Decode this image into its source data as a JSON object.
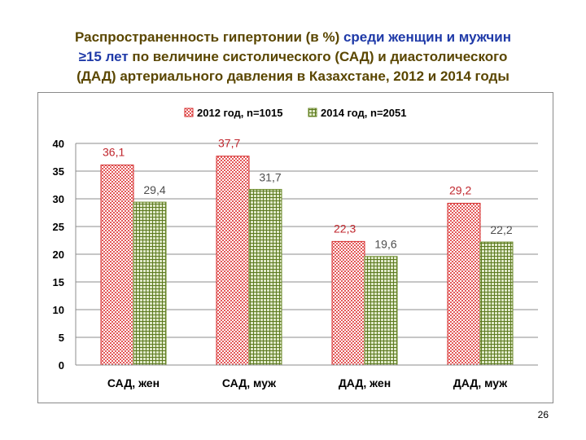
{
  "title": {
    "part1": "Распространенность гипертонии (в %) ",
    "part2": "среди женщин и мужчин",
    "line2": "≥15 лет",
    "line2_rest": " по величине систолического (САД) и диастолического",
    "line3": "(ДАД) артериального давления в Казахстане, 2012 и 2014 годы"
  },
  "page_number": "26",
  "colors": {
    "series_2012": "#d42a2a",
    "series_2014": "#6b8a2a",
    "label_2012": "#c0262d",
    "label_2014": "#4d4d4d",
    "title_main": "#5a4600",
    "title_accent": "#1f3aa8"
  },
  "chart_data": {
    "type": "bar",
    "categories": [
      "САД, жен",
      "САД, муж",
      "ДАД, жен",
      "ДАД, муж"
    ],
    "series": [
      {
        "name": "2012 год, n=1015",
        "values": [
          36.1,
          37.7,
          22.3,
          29.2
        ],
        "labels": [
          "36,1",
          "37,7",
          "22,3",
          "29,2"
        ]
      },
      {
        "name": "2014 год, n=2051",
        "values": [
          29.4,
          31.7,
          19.6,
          22.2
        ],
        "labels": [
          "29,4",
          "31,7",
          "19,6",
          "22,2"
        ]
      }
    ],
    "ylim": [
      0,
      40
    ],
    "yticks": [
      0,
      5,
      10,
      15,
      20,
      25,
      30,
      35,
      40
    ],
    "grid": true,
    "legend_position": "top"
  }
}
